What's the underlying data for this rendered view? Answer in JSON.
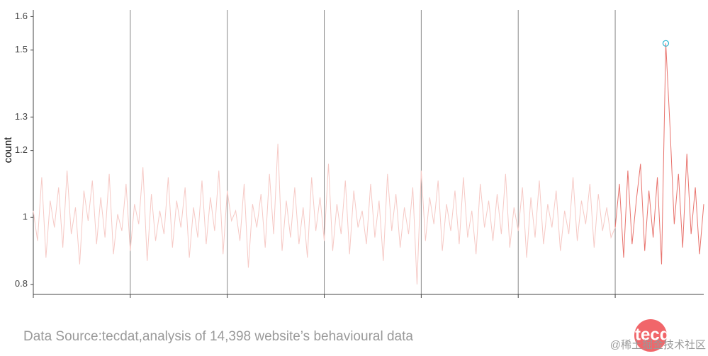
{
  "chart_data": {
    "type": "line",
    "y_label": "count",
    "xlim": [
      0,
      159
    ],
    "xticks": [
      0,
      23,
      46,
      69,
      92,
      115,
      138
    ],
    "ylim": [
      0.77,
      1.62
    ],
    "yticks": [
      0.8,
      1,
      1.2,
      1.3,
      1.5,
      1.6
    ],
    "grid": true,
    "series": [
      {
        "color": "#f6c9c5",
        "values": [
          1.02,
          0.93,
          1.12,
          0.88,
          1.05,
          0.97,
          1.09,
          0.91,
          1.14,
          0.95,
          1.03,
          0.86,
          1.08,
          0.99,
          1.11,
          0.92,
          1.06,
          0.94,
          1.13,
          0.89,
          1.01,
          0.96,
          1.1,
          0.9,
          1.04,
          0.98,
          1.15,
          0.87,
          1.07,
          0.93,
          1.02,
          0.95,
          1.12,
          0.91,
          1.05,
          0.97,
          1.09,
          0.88,
          1.03,
          0.94,
          1.11,
          0.92,
          1.06,
          0.96,
          1.14,
          0.89,
          1.08,
          0.99,
          1.02,
          0.93,
          1.1,
          0.85,
          1.04,
          0.97,
          1.07,
          0.91,
          1.13,
          0.95,
          1.22,
          0.9,
          1.05,
          0.94,
          1.09,
          0.92,
          1.03,
          0.88,
          1.12,
          0.96,
          1.06,
          0.93,
          1.16,
          0.9,
          1.04,
          0.95,
          1.11,
          0.89,
          1.08,
          0.97,
          1.02,
          0.92,
          1.1,
          0.94,
          1.05,
          0.87,
          1.13,
          0.96,
          1.07,
          0.91,
          1.03,
          0.95,
          1.09,
          0.8,
          1.14,
          0.93,
          1.06,
          0.98,
          1.11,
          0.9,
          1.04,
          0.96,
          1.08,
          0.92,
          1.12,
          0.94,
          1.02,
          0.89,
          1.1,
          0.97,
          1.05,
          0.93,
          1.07,
          0.95,
          1.13,
          0.91,
          1.03,
          0.96,
          1.09,
          0.88,
          1.06,
          0.94,
          1.11,
          0.92,
          1.04,
          0.97,
          1.08,
          0.9,
          1.02,
          0.95,
          1.12,
          0.93,
          1.05,
          0.98,
          1.1,
          0.91,
          1.07,
          0.96,
          1.03,
          0.94,
          0.97,
          null,
          null,
          null,
          null,
          null,
          null,
          null,
          null,
          null,
          null,
          null,
          null,
          null,
          null,
          null,
          null,
          null,
          null,
          null,
          null,
          null
        ]
      },
      {
        "color": "#e8736d",
        "marker_color": "#2bb5d0",
        "values": [
          null,
          null,
          null,
          null,
          null,
          null,
          null,
          null,
          null,
          null,
          null,
          null,
          null,
          null,
          null,
          null,
          null,
          null,
          null,
          null,
          null,
          null,
          null,
          null,
          null,
          null,
          null,
          null,
          null,
          null,
          null,
          null,
          null,
          null,
          null,
          null,
          null,
          null,
          null,
          null,
          null,
          null,
          null,
          null,
          null,
          null,
          null,
          null,
          null,
          null,
          null,
          null,
          null,
          null,
          null,
          null,
          null,
          null,
          null,
          null,
          null,
          null,
          null,
          null,
          null,
          null,
          null,
          null,
          null,
          null,
          null,
          null,
          null,
          null,
          null,
          null,
          null,
          null,
          null,
          null,
          null,
          null,
          null,
          null,
          null,
          null,
          null,
          null,
          null,
          null,
          null,
          null,
          null,
          null,
          null,
          null,
          null,
          null,
          null,
          null,
          null,
          null,
          null,
          null,
          null,
          null,
          null,
          null,
          null,
          null,
          null,
          null,
          null,
          null,
          null,
          null,
          null,
          null,
          null,
          null,
          null,
          null,
          null,
          null,
          null,
          null,
          null,
          null,
          null,
          null,
          null,
          null,
          null,
          null,
          null,
          null,
          null,
          null,
          0.97,
          1.1,
          0.88,
          1.14,
          0.92,
          1.05,
          1.16,
          0.9,
          1.08,
          0.94,
          1.12,
          0.86,
          1.52,
          1.27,
          0.98,
          1.13,
          0.91,
          1.19,
          0.95,
          1.09,
          0.89,
          1.04
        ]
      }
    ]
  },
  "footer": {
    "source": "Data Source:tecdat,analysis of 14,398 website’s behavioural data",
    "logo": "tecdat",
    "watermark": "@稀土掘金技术社区"
  }
}
